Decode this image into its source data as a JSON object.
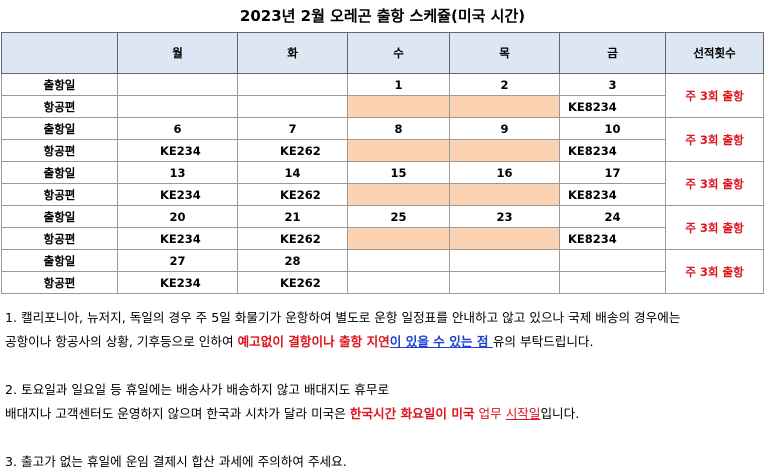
{
  "title": "2023년 2월 오레곤 출항 스케쥴(미국 시간)",
  "table": {
    "headers": [
      "",
      "월",
      "화",
      "수",
      "목",
      "금",
      "선적횟수"
    ],
    "row_labels": {
      "date": "출항일",
      "flight": "항공편"
    },
    "weeks": [
      {
        "dates": [
          "",
          "",
          "1",
          "2",
          "3"
        ],
        "flights": [
          "",
          "",
          "",
          "",
          "KE8234"
        ],
        "count": "주 3회 출항"
      },
      {
        "dates": [
          "6",
          "7",
          "8",
          "9",
          "10"
        ],
        "flights": [
          "KE234",
          "KE262",
          "",
          "",
          "KE8234"
        ],
        "count": "주 3회 출항"
      },
      {
        "dates": [
          "13",
          "14",
          "15",
          "16",
          "17"
        ],
        "flights": [
          "KE234",
          "KE262",
          "",
          "",
          "KE8234"
        ],
        "count": "주 3회 출항"
      },
      {
        "dates": [
          "20",
          "21",
          "25",
          "23",
          "24"
        ],
        "flights": [
          "KE234",
          "KE262",
          "",
          "",
          "KE8234"
        ],
        "count": "주 3회 출항"
      },
      {
        "dates": [
          "27",
          "28",
          "",
          "",
          ""
        ],
        "flights": [
          "KE234",
          "KE262",
          "",
          "",
          ""
        ],
        "count": "주 3회 출항"
      }
    ],
    "orange_color": "#fbd2b2",
    "header_color": "#dde6f3",
    "accent_red": "#e0141e"
  },
  "notes": {
    "n1_line1": "1. 캘리포니아, 뉴저지, 독일의 경우 주 5일 화물기가 운항하여 별도로 운항 일정표를 안내하고 않고 있으나 국제 배송의 경우에는",
    "n1_line2_a": "공항이나 항공사의 상황, 기후등으로 인하여 ",
    "n1_line2_red": "예고없이 결항이나 출항 지연",
    "n1_line2_blue": "이 있을 수 있는 점 ",
    "n1_line2_b": "유의 부탁드립니다.",
    "n2_line1": "2. 토요일과 일요일 등 휴일에는 배송사가 배송하지 않고 배대지도 휴무로",
    "n2_line2_a": "배대지나 고객센터도 운영하지 않으며 한국과 시차가 달라 미국은 ",
    "n2_line2_red": "한국시간 화요일이 미국",
    "n2_line2_mid": " 업무 ",
    "n2_line2_red2": "시작일",
    "n2_line2_b": "입니다.",
    "n3_line1": "3. 출고가 없는 휴일에 운임 결제시 합산 과세에 주의하여 주세요."
  }
}
